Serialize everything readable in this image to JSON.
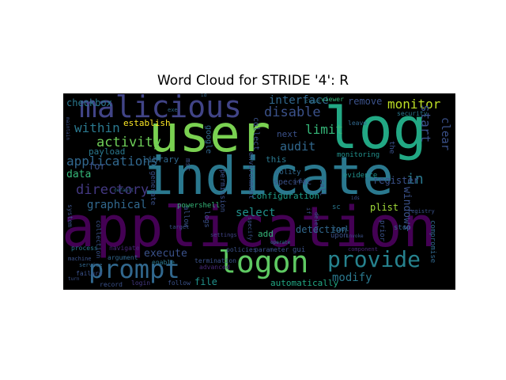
{
  "title": "Word Cloud for STRIDE '4': R",
  "palette": {
    "background": "#000000",
    "viridis_light_green": "#7ad151",
    "viridis_teal": "#22a884",
    "viridis_blue": "#2a788e",
    "viridis_indigo": "#414487",
    "viridis_purple": "#440154"
  },
  "words": [
    {
      "text": "application",
      "color": "#440154"
    },
    {
      "text": "indicate",
      "color": "#2a788e"
    },
    {
      "text": "user",
      "color": "#7ad151"
    },
    {
      "text": "log",
      "color": "#22a884"
    },
    {
      "text": "malicious",
      "color": "#414487"
    },
    {
      "text": "logon",
      "color": "#5ec962"
    },
    {
      "text": "prompt",
      "color": "#31688e"
    },
    {
      "text": "provide",
      "color": "#26828e"
    },
    {
      "text": "monitor",
      "color": "#bddf26"
    },
    {
      "text": "disable",
      "color": "#3b528b"
    },
    {
      "text": "interface",
      "color": "#31688e"
    },
    {
      "text": "remove",
      "color": "#3b528b"
    },
    {
      "text": "within",
      "color": "#2a788e"
    },
    {
      "text": "limit",
      "color": "#35b779"
    },
    {
      "text": "activity",
      "color": "#6ece58"
    },
    {
      "text": "audit",
      "color": "#31688e"
    },
    {
      "text": "in",
      "color": "#2a788e"
    },
    {
      "text": "directory",
      "color": "#443983"
    },
    {
      "text": "applications",
      "color": "#31688e"
    },
    {
      "text": "data",
      "color": "#35b779"
    },
    {
      "text": "for",
      "color": "#3b528b"
    },
    {
      "text": "graphical",
      "color": "#31688e"
    },
    {
      "text": "select",
      "color": "#21918c"
    },
    {
      "text": "detection",
      "color": "#31688e"
    },
    {
      "text": "plist",
      "color": "#a0da39"
    },
    {
      "text": "modify",
      "color": "#2a788e"
    },
    {
      "text": "execute",
      "color": "#3b528b"
    },
    {
      "text": "file",
      "color": "#21918c"
    },
    {
      "text": "automatically",
      "color": "#22a884"
    },
    {
      "text": "register",
      "color": "#3b528b"
    },
    {
      "text": "checkbox",
      "color": "#2a788e"
    },
    {
      "text": "establish",
      "color": "#fde725"
    },
    {
      "text": "payload",
      "color": "#2a788e"
    },
    {
      "text": "this",
      "color": "#2a788e"
    },
    {
      "text": "next",
      "color": "#3b528b"
    },
    {
      "text": "library",
      "color": "#31688e"
    },
    {
      "text": "monitoring",
      "color": "#21918c"
    },
    {
      "text": "add",
      "color": "#35b779"
    },
    {
      "text": "specific",
      "color": "#3b528b"
    },
    {
      "text": "configuration",
      "color": "#1f9e89"
    },
    {
      "text": "gui",
      "color": "#3b528b"
    },
    {
      "text": "tool",
      "color": "#31688e"
    },
    {
      "text": "upon",
      "color": "#3b528b"
    },
    {
      "text": "evidence",
      "color": "#21918c"
    },
    {
      "text": "policy",
      "color": "#31688e"
    },
    {
      "text": "sc",
      "color": "#2a788e"
    },
    {
      "text": "stop",
      "color": "#31688e"
    },
    {
      "text": "registry",
      "color": "#3b528b"
    },
    {
      "text": "viewer",
      "color": "#35b779"
    },
    {
      "text": "security",
      "color": "#2a788e"
    },
    {
      "text": "powershell",
      "color": "#35b779"
    },
    {
      "text": "process",
      "color": "#2a788e"
    },
    {
      "text": "navigate",
      "color": "#482878"
    },
    {
      "text": "termination",
      "color": "#3b528b"
    },
    {
      "text": "enable",
      "color": "#2a788e"
    },
    {
      "text": "argument",
      "color": "#31688e"
    },
    {
      "text": "advanced",
      "color": "#482878"
    },
    {
      "text": "policies",
      "color": "#3b528b"
    },
    {
      "text": "parameter",
      "color": "#3b528b"
    },
    {
      "text": "settings",
      "color": "#414487"
    },
    {
      "text": "operate",
      "color": "#2a788e"
    },
    {
      "text": "record",
      "color": "#3b528b"
    },
    {
      "text": "login",
      "color": "#443983"
    },
    {
      "text": "follow",
      "color": "#3b528b"
    },
    {
      "text": "failure",
      "color": "#3b528b"
    },
    {
      "text": "service",
      "color": "#31688e"
    },
    {
      "text": "machine",
      "color": "#3b528b"
    },
    {
      "text": "turn",
      "color": "#3b528b"
    },
    {
      "text": "leave",
      "color": "#31688e"
    },
    {
      "text": "component",
      "color": "#482878"
    },
    {
      "text": "exe",
      "color": "#31688e"
    },
    {
      "text": "id",
      "color": "#31688e"
    },
    {
      "text": "ids",
      "color": "#3b528b"
    },
    {
      "text": "invoke",
      "color": "#3b528b"
    },
    {
      "text": "cloud",
      "color": "#2a788e"
    },
    {
      "text": "conduct",
      "color": "#3b528b"
    },
    {
      "text": "default",
      "color": "#31688e"
    },
    {
      "text": "target",
      "color": "#3b528b"
    },
    {
      "text": "start",
      "color": "#3b528b"
    },
    {
      "text": "clear",
      "color": "#3b528b"
    },
    {
      "text": "windows",
      "color": "#3b528b"
    },
    {
      "text": "the",
      "color": "#3b528b"
    },
    {
      "text": "compromise",
      "color": "#31688e"
    },
    {
      "text": "call",
      "color": "#3b528b"
    },
    {
      "text": "environment",
      "color": "#3b528b"
    },
    {
      "text": "collect",
      "color": "#3b528b"
    },
    {
      "text": "allow",
      "color": "#3b528b"
    },
    {
      "text": "logs",
      "color": "#3b528b"
    },
    {
      "text": "google",
      "color": "#31688e"
    },
    {
      "text": "msc",
      "color": "#3b528b"
    },
    {
      "text": "permission",
      "color": "#3b528b"
    },
    {
      "text": "generate",
      "color": "#3b528b"
    },
    {
      "text": "collection",
      "color": "#3b528b"
    },
    {
      "text": "system",
      "color": "#3b528b"
    },
    {
      "text": "maintain",
      "color": "#3b528b"
    },
    {
      "text": "specify",
      "color": "#3b528b"
    },
    {
      "text": "delete",
      "color": "#3b528b"
    },
    {
      "text": "if",
      "color": "#3b528b"
    },
    {
      "text": "prior",
      "color": "#3b528b"
    }
  ]
}
